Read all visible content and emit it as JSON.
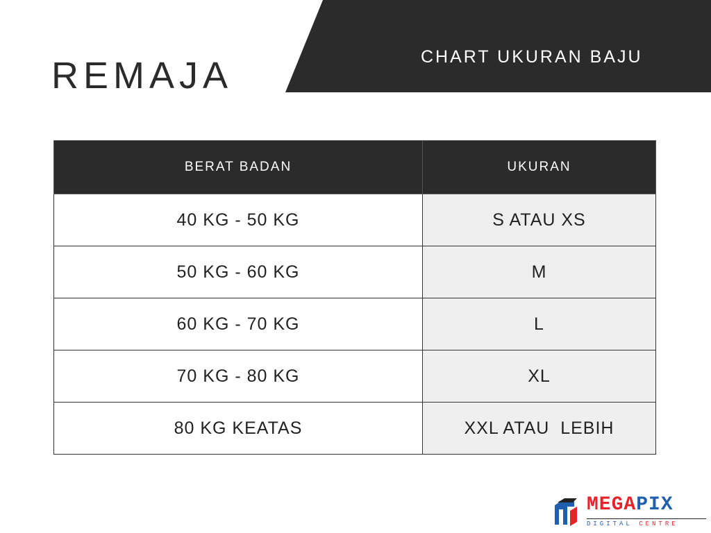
{
  "header": {
    "title": "REMAJA",
    "subtitle": "CHART UKURAN BAJU"
  },
  "table": {
    "columns": [
      "BERAT BADAN",
      "UKURAN"
    ],
    "rows": [
      [
        "40 KG - 50 KG",
        "S ATAU XS"
      ],
      [
        "50 KG - 60 KG",
        "M"
      ],
      [
        "60 KG - 70 KG",
        "L"
      ],
      [
        "70 KG - 80 KG",
        "XL"
      ],
      [
        "80 KG KEATAS",
        "XXL ATAU  LEBIH"
      ]
    ]
  },
  "logo": {
    "name": "MEGAPIX",
    "tagline": "DIGITAL CENTRE",
    "colors": {
      "red": "#e8232a",
      "blue": "#1f5fb0",
      "dark": "#222222"
    }
  },
  "colors": {
    "dark": "#2b2b2b",
    "alt_cell": "#efefef"
  }
}
